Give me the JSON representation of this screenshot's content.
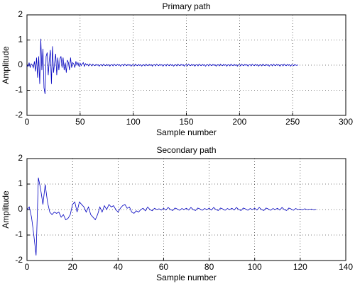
{
  "chart_data": [
    {
      "type": "line",
      "title": "Primary path",
      "x_label": "Sample number",
      "y_label": "Amplitude",
      "color": "#0000c0",
      "grid": true,
      "xlim": [
        0,
        300
      ],
      "xticks": [
        0,
        50,
        100,
        150,
        200,
        250,
        300
      ],
      "ylim": [
        -2,
        2
      ],
      "yticks": [
        -2,
        -1,
        0,
        1,
        2
      ],
      "x": [
        0,
        1,
        2,
        3,
        4,
        5,
        6,
        7,
        8,
        9,
        10,
        11,
        12,
        13,
        14,
        15,
        16,
        17,
        18,
        19,
        20,
        21,
        22,
        23,
        24,
        25,
        26,
        27,
        28,
        29,
        30,
        31,
        32,
        33,
        34,
        35,
        36,
        37,
        38,
        39,
        40,
        41,
        42,
        43,
        44,
        45,
        46,
        47,
        48,
        49,
        50,
        51,
        52,
        53,
        54,
        55,
        56,
        57,
        58,
        59,
        60,
        61,
        62,
        63,
        64,
        65,
        66,
        67,
        68,
        69,
        70,
        71,
        72,
        73,
        74,
        75,
        76,
        77,
        78,
        79,
        80,
        81,
        82,
        83,
        84,
        85,
        86,
        87,
        88,
        89,
        90,
        91,
        92,
        93,
        94,
        95,
        96,
        97,
        98,
        99,
        100,
        101,
        102,
        103,
        104,
        105,
        106,
        107,
        108,
        109,
        110,
        111,
        112,
        113,
        114,
        115,
        116,
        117,
        118,
        119,
        120,
        121,
        122,
        123,
        124,
        125,
        126,
        127,
        128,
        129,
        130,
        131,
        132,
        133,
        134,
        135,
        136,
        137,
        138,
        139,
        140,
        141,
        142,
        143,
        144,
        145,
        146,
        147,
        148,
        149,
        150,
        151,
        152,
        153,
        154,
        155,
        156,
        157,
        158,
        159,
        160,
        161,
        162,
        163,
        164,
        165,
        166,
        167,
        168,
        169,
        170,
        171,
        172,
        173,
        174,
        175,
        176,
        177,
        178,
        179,
        180,
        181,
        182,
        183,
        184,
        185,
        186,
        187,
        188,
        189,
        190,
        191,
        192,
        193,
        194,
        195,
        196,
        197,
        198,
        199,
        200,
        201,
        202,
        203,
        204,
        205,
        206,
        207,
        208,
        209,
        210,
        211,
        212,
        213,
        214,
        215,
        216,
        217,
        218,
        219,
        220,
        221,
        222,
        223,
        224,
        225,
        226,
        227,
        228,
        229,
        230,
        231,
        232,
        233,
        234,
        235,
        236,
        237,
        238,
        239,
        240,
        241,
        242,
        243,
        244,
        245,
        246,
        247,
        248,
        249,
        250,
        251,
        252,
        253,
        254,
        255
      ],
      "values": [
        0,
        -0.05,
        0.1,
        -0.1,
        0.05,
        0,
        -0.1,
        0.15,
        -0.25,
        0.3,
        -0.5,
        0.35,
        -0.75,
        1.05,
        -0.2,
        0.65,
        -0.9,
        -1.15,
        0.35,
        0.5,
        -0.4,
        0.2,
        0.6,
        -0.75,
        0.75,
        -0.3,
        0.1,
        0.45,
        -0.4,
        0.3,
        -0.2,
        0.25,
        0.35,
        -0.1,
        0.3,
        -0.2,
        0.1,
        -0.3,
        0.2,
        0.1,
        -0.2,
        0.3,
        -0.1,
        0.1,
        0.05,
        -0.1,
        0.15,
        0,
        0.1,
        -0.05,
        0.08,
        -0.02,
        0.05,
        0.1,
        -0.05,
        0.06,
        0,
        0.04,
        -0.03,
        0.05,
        0.02,
        -0.03,
        0.04,
        0,
        -0.02,
        0.03,
        -0.01,
        0.02,
        -0.04,
        0.01,
        0.02,
        -0.03,
        0.04,
        0,
        -0.02,
        0.03,
        -0.01,
        0.02,
        -0.04,
        0.01,
        0.02,
        -0.03,
        0.04,
        0,
        -0.02,
        0.03,
        -0.01,
        0.02,
        -0.04,
        0.01,
        0.02,
        -0.03,
        0.04,
        0,
        -0.02,
        0.03,
        -0.01,
        0.02,
        -0.04,
        0.01,
        0.02,
        -0.03,
        0.04,
        0,
        -0.02,
        0.03,
        -0.01,
        0.02,
        -0.04,
        0.01,
        0.02,
        -0.03,
        0.04,
        0,
        -0.02,
        0.03,
        -0.01,
        0.02,
        -0.04,
        0.01,
        0.02,
        -0.03,
        0.04,
        0,
        -0.02,
        0.03,
        -0.01,
        0.02,
        -0.04,
        0.01,
        0.02,
        -0.03,
        0.04,
        0,
        -0.02,
        0.03,
        -0.01,
        0.02,
        -0.04,
        0.01,
        0.02,
        -0.03,
        0.04,
        0,
        -0.02,
        0.03,
        -0.01,
        0.02,
        -0.04,
        0.01,
        0.02,
        -0.03,
        0.04,
        0,
        -0.02,
        0.03,
        -0.01,
        0.02,
        -0.04,
        0.01,
        0.02,
        -0.03,
        0.04,
        0,
        -0.02,
        0.03,
        -0.01,
        0.02,
        -0.04,
        0.01,
        0.02,
        -0.03,
        0.04,
        0,
        -0.02,
        0.03,
        -0.01,
        0.02,
        -0.04,
        0.01,
        0.02,
        -0.03,
        0.04,
        0,
        -0.02,
        0.03,
        -0.01,
        0.02,
        -0.04,
        0.01,
        0.02,
        -0.03,
        0.04,
        0,
        -0.02,
        0.03,
        -0.01,
        0.02,
        -0.04,
        0.01,
        0.02,
        -0.03,
        0.04,
        0,
        -0.02,
        0.03,
        -0.01,
        0.02,
        -0.04,
        0.01,
        0.02,
        -0.03,
        0.04,
        0,
        -0.02,
        0.03,
        -0.01,
        0.02,
        -0.04,
        0.01,
        0.02,
        -0.03,
        0.04,
        0,
        -0.02,
        0.03,
        -0.01,
        0.02,
        -0.04,
        0.01,
        0.02,
        -0.03,
        0.04,
        0,
        -0.02,
        0.03,
        -0.01,
        0.02,
        -0.04,
        0.01,
        0.02,
        -0.03,
        0.04,
        0,
        -0.02,
        0.03,
        -0.01,
        0.02,
        -0.04,
        0.01,
        0.01,
        -0.02,
        0.02,
        0,
        -0.01,
        0.01
      ]
    },
    {
      "type": "line",
      "title": "Secondary path",
      "x_label": "Sample number",
      "y_label": "Amplitude",
      "color": "#0000c0",
      "grid": true,
      "xlim": [
        0,
        140
      ],
      "xticks": [
        0,
        20,
        40,
        60,
        80,
        100,
        120,
        140
      ],
      "ylim": [
        -2,
        2
      ],
      "yticks": [
        -2,
        -1,
        0,
        1,
        2
      ],
      "x": [
        0,
        1,
        2,
        3,
        4,
        5,
        6,
        7,
        8,
        9,
        10,
        11,
        12,
        13,
        14,
        15,
        16,
        17,
        18,
        19,
        20,
        21,
        22,
        23,
        24,
        25,
        26,
        27,
        28,
        29,
        30,
        31,
        32,
        33,
        34,
        35,
        36,
        37,
        38,
        39,
        40,
        41,
        42,
        43,
        44,
        45,
        46,
        47,
        48,
        49,
        50,
        51,
        52,
        53,
        54,
        55,
        56,
        57,
        58,
        59,
        60,
        61,
        62,
        63,
        64,
        65,
        66,
        67,
        68,
        69,
        70,
        71,
        72,
        73,
        74,
        75,
        76,
        77,
        78,
        79,
        80,
        81,
        82,
        83,
        84,
        85,
        86,
        87,
        88,
        89,
        90,
        91,
        92,
        93,
        94,
        95,
        96,
        97,
        98,
        99,
        100,
        101,
        102,
        103,
        104,
        105,
        106,
        107,
        108,
        109,
        110,
        111,
        112,
        113,
        114,
        115,
        116,
        117,
        118,
        119,
        120,
        121,
        122,
        123,
        124,
        125,
        126,
        127
      ],
      "values": [
        0,
        0.1,
        -0.3,
        -1.0,
        -1.8,
        1.25,
        0.8,
        0.2,
        0.98,
        0.3,
        -0.1,
        -0.2,
        -0.1,
        -0.15,
        -0.1,
        -0.3,
        -0.2,
        -0.4,
        -0.35,
        -0.2,
        0.2,
        0.3,
        -0.1,
        0.3,
        0.2,
        0.1,
        -0.1,
        0.1,
        -0.2,
        -0.3,
        -0.4,
        -0.2,
        0.1,
        -0.1,
        0.15,
        0,
        0.2,
        0.1,
        0.15,
        0,
        -0.1,
        0.05,
        0.15,
        0.2,
        0.05,
        0.1,
        -0.1,
        -0.15,
        -0.05,
        -0.1,
        0,
        0.05,
        -0.05,
        0.1,
        0,
        -0.05,
        0.05,
        0,
        0.03,
        -0.02,
        0.05,
        -0.02,
        0.08,
        0,
        -0.04,
        0.06,
        0.02,
        -0.03,
        0.04,
        0,
        0.05,
        -0.02,
        0.08,
        0,
        -0.04,
        0.06,
        0.02,
        -0.03,
        0.04,
        0,
        0.05,
        -0.02,
        0.08,
        0,
        -0.04,
        0.06,
        0.02,
        -0.03,
        0.04,
        0,
        0.05,
        -0.02,
        0.08,
        0,
        -0.04,
        0.06,
        0.02,
        -0.03,
        0.04,
        0,
        0.05,
        -0.02,
        0.08,
        0,
        -0.04,
        0.06,
        0.02,
        -0.03,
        0.04,
        0,
        0.05,
        -0.02,
        0.08,
        0,
        -0.04,
        0.06,
        0.02,
        -0.03,
        0.04,
        0,
        0.02,
        -0.01,
        0.03,
        0,
        0.01,
        0.02,
        -0.01,
        0.01
      ]
    }
  ]
}
